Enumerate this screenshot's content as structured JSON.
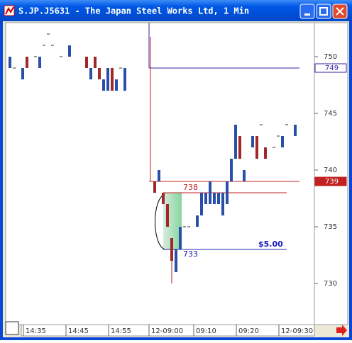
{
  "window": {
    "title": "S.JP.J5631 - The Japan Steel Works Ltd, 1 Min"
  },
  "chart_data": {
    "type": "candlestick",
    "ylim": [
      726.375,
      753
    ],
    "yticks": [
      730,
      735,
      740,
      745,
      750
    ],
    "xticks": [
      "14:35",
      "14:45",
      "14:55",
      "12-09:00",
      "09:10",
      "09:20",
      "12-09:30"
    ],
    "up_color": "#2a4fa8",
    "down_color": "#a02828",
    "sessions": [
      {
        "open": [
          749,
          749,
          null,
          748,
          750,
          null,
          750,
          749,
          751,
          752,
          751,
          null,
          750,
          null,
          750,
          null,
          null,
          null,
          750,
          748,
          750,
          749,
          747,
          747,
          749,
          747,
          749,
          747
        ],
        "high": [
          750,
          749,
          null,
          749,
          750,
          null,
          750,
          750,
          751,
          752,
          751,
          null,
          750,
          null,
          751,
          null,
          null,
          null,
          750,
          749,
          750,
          749,
          748,
          749,
          749,
          748,
          749,
          749
        ],
        "low": [
          749,
          749,
          null,
          748,
          749,
          null,
          750,
          749,
          751,
          752,
          751,
          null,
          750,
          null,
          750,
          null,
          null,
          null,
          749,
          748,
          749,
          748,
          747,
          747,
          747,
          747,
          749,
          747
        ],
        "close": [
          750,
          749,
          null,
          749,
          749,
          null,
          750,
          750,
          751,
          752,
          751,
          null,
          750,
          null,
          751,
          null,
          null,
          null,
          749,
          749,
          749,
          748,
          748,
          749,
          747,
          748,
          749,
          749
        ]
      },
      {
        "open": [
          739,
          739,
          738,
          737,
          734,
          731,
          733,
          735,
          735,
          null,
          735,
          736,
          737,
          737,
          737,
          737,
          736,
          737,
          739,
          741,
          743,
          739,
          null,
          742,
          743,
          744,
          742,
          null,
          742,
          743,
          742,
          744,
          null,
          743
        ],
        "high": [
          739,
          740,
          738,
          737,
          734,
          733,
          735,
          735,
          735,
          null,
          736,
          738,
          738,
          739,
          738,
          738,
          738,
          739,
          741,
          744,
          743,
          740,
          null,
          743,
          743,
          744,
          742,
          null,
          742,
          743,
          743,
          744,
          null,
          744
        ],
        "low": [
          738,
          739,
          737,
          735,
          730,
          731,
          733,
          735,
          735,
          null,
          735,
          736,
          737,
          737,
          737,
          737,
          736,
          737,
          739,
          741,
          741,
          739,
          null,
          742,
          741,
          744,
          741,
          null,
          742,
          743,
          742,
          744,
          null,
          743
        ],
        "close": [
          738,
          740,
          737,
          735,
          732,
          733,
          735,
          735,
          735,
          null,
          736,
          738,
          738,
          739,
          738,
          738,
          738,
          739,
          741,
          744,
          741,
          740,
          null,
          743,
          741,
          744,
          741,
          null,
          742,
          743,
          743,
          744,
          null,
          744
        ]
      }
    ],
    "price_lines": [
      {
        "value": 749,
        "color": "#3a1fa0",
        "label": "749"
      },
      {
        "value": 739,
        "color": "#c02020",
        "label": "739"
      }
    ],
    "levels": [
      {
        "value": 738,
        "color": "#c02020",
        "label": "738"
      },
      {
        "value": 733,
        "color": "#2020b0",
        "label": "733"
      }
    ],
    "range_label": "$5.00"
  }
}
